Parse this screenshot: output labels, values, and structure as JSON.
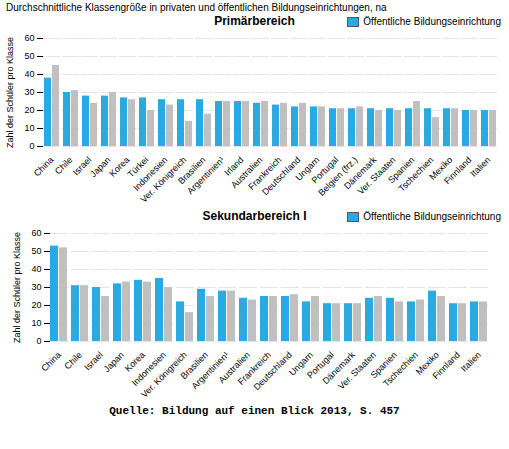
{
  "chart_data": [
    {
      "type": "bar",
      "title": "Durchschnittliche Klassengröße in privaten und öffentlichen Bildungseinrichtungen, na",
      "subtitle": "Primärbereich",
      "ylabel": "Zahl der Schüler pro Klasse",
      "categories": [
        "China",
        "Chile",
        "Israel",
        "Japan",
        "Korea",
        "Türkei",
        "Indonesien",
        "Ver. Königreich",
        "Brasilien",
        "Argentinien¹",
        "Irland",
        "Australien",
        "Frankreich",
        "Deutschland",
        "Ungarn",
        "Portugal",
        "Belgien (frz.)",
        "Dänemark",
        "Ver. Staaten",
        "Spanien",
        "Tschechien",
        "Mexiko",
        "Finnland",
        "Italien"
      ],
      "series": [
        {
          "name": "Öffentliche Bildungseinrichtung",
          "color": "#29abe2",
          "values": [
            38,
            30,
            28,
            28,
            27,
            27,
            26,
            26,
            26,
            25,
            25,
            24,
            23,
            22,
            22,
            21,
            21,
            21,
            21,
            21,
            21,
            21,
            20,
            20
          ]
        },
        {
          "color": "#c0c0c0",
          "values": [
            45,
            31,
            24,
            30,
            26,
            20,
            23,
            14,
            18,
            25,
            25,
            25,
            24,
            24,
            22,
            21,
            22,
            20,
            20,
            25,
            16,
            21,
            20,
            20
          ]
        }
      ],
      "ylim": [
        0,
        60
      ],
      "yticks": [
        0,
        10,
        20,
        30,
        40,
        50,
        60
      ],
      "grid": true,
      "legend": "top"
    },
    {
      "type": "bar",
      "subtitle": "Sekundarbereich I",
      "ylabel": "Zahl der Schüler pro Klasse",
      "categories": [
        "China",
        "Chile",
        "Israel",
        "Japan",
        "Korea",
        "Indonesien",
        "Ver. Königreich",
        "Brasilien",
        "Argentinien¹",
        "Australien",
        "Frankreich",
        "Deutschland",
        "Ungarn",
        "Portugal",
        "Dänemark",
        "Ver. Staaten",
        "Spanien",
        "Tschechien",
        "Mexiko",
        "Finnland",
        "Italien"
      ],
      "series": [
        {
          "name": "Öffentliche Bildungseinrichtung",
          "color": "#29abe2",
          "values": [
            53,
            31,
            30,
            32,
            34,
            35,
            22,
            29,
            28,
            24,
            25,
            25,
            22,
            21,
            21,
            24,
            24,
            22,
            28,
            21,
            22
          ]
        },
        {
          "color": "#c0c0c0",
          "values": [
            52,
            31,
            25,
            33,
            33,
            30,
            16,
            25,
            28,
            23,
            25,
            26,
            25,
            21,
            21,
            25,
            22,
            23,
            25,
            21,
            22
          ]
        }
      ],
      "ylim": [
        0,
        60
      ],
      "yticks": [
        0,
        10,
        20,
        30,
        40,
        50,
        60
      ],
      "grid": true,
      "legend": "top",
      "annotations": [
        "Quelle: Bildung auf einen Blick 2013, S. 457"
      ]
    }
  ]
}
